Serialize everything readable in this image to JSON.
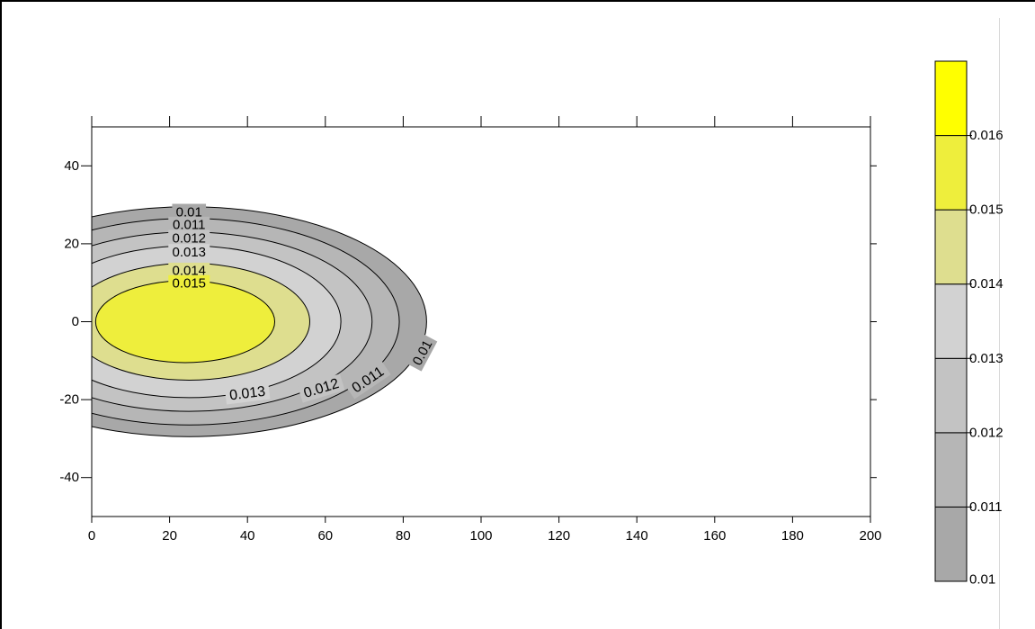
{
  "chart_data": {
    "type": "contour",
    "title": "",
    "xlabel": "",
    "ylabel": "",
    "xlim": [
      0,
      200
    ],
    "ylim": [
      -50,
      50
    ],
    "x_ticks": [
      0,
      20,
      40,
      60,
      80,
      100,
      120,
      140,
      160,
      180,
      200
    ],
    "y_ticks": [
      -40,
      -20,
      0,
      20,
      40
    ],
    "grid": false,
    "contours": [
      {
        "level": 0.01,
        "label": "0.01",
        "fill": "#a8a8a8",
        "center_x": 25,
        "x_max": 86,
        "y_half": 29.5
      },
      {
        "level": 0.011,
        "label": "0.011",
        "fill": "#b6b6b6",
        "center_x": 25,
        "x_max": 79,
        "y_half": 26.5
      },
      {
        "level": 0.012,
        "label": "0.012",
        "fill": "#c3c3c3",
        "center_x": 25,
        "x_max": 72,
        "y_half": 23.0
      },
      {
        "level": 0.013,
        "label": "0.013",
        "fill": "#d2d2d2",
        "center_x": 25,
        "x_max": 64,
        "y_half": 19.5
      },
      {
        "level": 0.014,
        "label": "0.014",
        "fill": "#dede8f",
        "center_x": 25,
        "x_max": 56,
        "y_half": 15.0
      },
      {
        "level": 0.015,
        "label": "0.015",
        "fill": "#eeee3c",
        "center_x": 24,
        "x_max": 47,
        "y_half": 10.5
      }
    ],
    "colorbar": {
      "position": "right",
      "labels": [
        "0.01",
        "0.011",
        "0.012",
        "0.013",
        "0.014",
        "0.015",
        "0.016"
      ],
      "bands": [
        {
          "from": 0.01,
          "to": 0.011,
          "color": "#a8a8a8"
        },
        {
          "from": 0.011,
          "to": 0.012,
          "color": "#b6b6b6"
        },
        {
          "from": 0.012,
          "to": 0.013,
          "color": "#c3c3c3"
        },
        {
          "from": 0.013,
          "to": 0.014,
          "color": "#d2d2d2"
        },
        {
          "from": 0.014,
          "to": 0.015,
          "color": "#dede8f"
        },
        {
          "from": 0.015,
          "to": 0.016,
          "color": "#eeee3c"
        },
        {
          "from": 0.016,
          "to": 0.017,
          "color": "#ffff00"
        }
      ]
    }
  }
}
